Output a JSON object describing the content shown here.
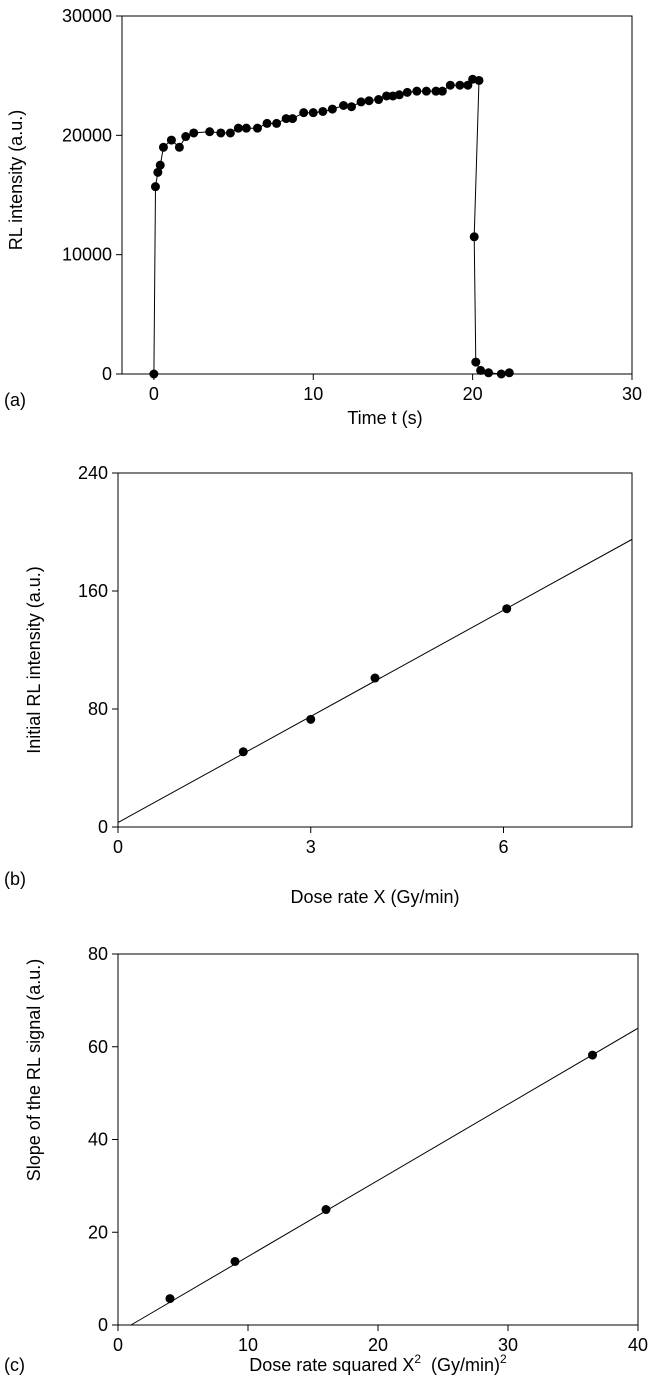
{
  "chart_data": [
    {
      "type": "line",
      "panel_label": "(a)",
      "xlabel": "Time t (s)",
      "ylabel": "RL intensity (a.u.)",
      "xlim": [
        -2,
        30
      ],
      "ylim": [
        0,
        30000
      ],
      "xticks": [
        0,
        10,
        20,
        30
      ],
      "yticks": [
        0,
        10000,
        20000,
        30000
      ],
      "grid": false,
      "series": [
        {
          "markers": true,
          "connected": true,
          "points": [
            [
              0,
              0
            ],
            [
              0.1,
              15700
            ],
            [
              0.25,
              16900
            ],
            [
              0.4,
              17500
            ],
            [
              0.6,
              19000
            ],
            [
              1.1,
              19600
            ],
            [
              1.6,
              19000
            ],
            [
              2.0,
              19900
            ],
            [
              2.5,
              20200
            ],
            [
              3.5,
              20300
            ],
            [
              4.2,
              20200
            ],
            [
              4.8,
              20200
            ],
            [
              5.3,
              20600
            ],
            [
              5.8,
              20600
            ],
            [
              6.5,
              20600
            ],
            [
              7.1,
              21000
            ],
            [
              7.7,
              21000
            ],
            [
              8.3,
              21400
            ],
            [
              8.7,
              21400
            ],
            [
              9.4,
              21900
            ],
            [
              10.0,
              21900
            ],
            [
              10.6,
              22000
            ],
            [
              11.2,
              22200
            ],
            [
              11.9,
              22500
            ],
            [
              12.4,
              22400
            ],
            [
              13.0,
              22800
            ],
            [
              13.5,
              22900
            ],
            [
              14.1,
              23000
            ],
            [
              14.6,
              23300
            ],
            [
              15.0,
              23300
            ],
            [
              15.4,
              23400
            ],
            [
              15.9,
              23600
            ],
            [
              16.5,
              23700
            ],
            [
              17.1,
              23700
            ],
            [
              17.7,
              23700
            ],
            [
              18.1,
              23700
            ],
            [
              18.6,
              24200
            ],
            [
              19.2,
              24200
            ],
            [
              19.7,
              24200
            ],
            [
              20.0,
              24700
            ],
            [
              20.4,
              24600
            ],
            [
              20.1,
              11500
            ],
            [
              20.2,
              1000
            ],
            [
              20.5,
              300
            ],
            [
              21.0,
              100
            ],
            [
              21.8,
              0
            ],
            [
              22.3,
              100
            ]
          ]
        }
      ]
    },
    {
      "type": "scatter",
      "panel_label": "(b)",
      "xlabel": "Dose rate X (Gy/min)",
      "ylabel": "Initial RL intensity (a.u.)",
      "xlim": [
        0,
        8
      ],
      "ylim": [
        0,
        240
      ],
      "xticks": [
        0,
        3,
        6
      ],
      "yticks": [
        0,
        80,
        160,
        240
      ],
      "grid": false,
      "series": [
        {
          "points": [
            [
              1.95,
              51
            ],
            [
              3.0,
              73
            ],
            [
              4.0,
              101
            ],
            [
              6.05,
              148
            ]
          ]
        }
      ],
      "fit_line": [
        [
          0,
          3
        ],
        [
          8,
          195
        ]
      ]
    },
    {
      "type": "scatter",
      "panel_label": "(c)",
      "xlabel": "Dose rate squared X",
      "xlabel_superscript": "2",
      "xlabel_units": "(Gy/min)",
      "xlabel_units_superscript": "2",
      "ylabel": "Slope of the RL signal (a.u.)",
      "xlim": [
        0,
        40
      ],
      "ylim": [
        0,
        80
      ],
      "xticks": [
        0,
        10,
        20,
        30,
        40
      ],
      "yticks": [
        0,
        20,
        40,
        60,
        80
      ],
      "grid": false,
      "series": [
        {
          "points": [
            [
              4,
              5.7
            ],
            [
              9,
              13.7
            ],
            [
              16,
              24.9
            ],
            [
              36.5,
              58.2
            ]
          ]
        }
      ],
      "fit_line": [
        [
          1,
          0
        ],
        [
          40,
          64
        ]
      ]
    }
  ]
}
